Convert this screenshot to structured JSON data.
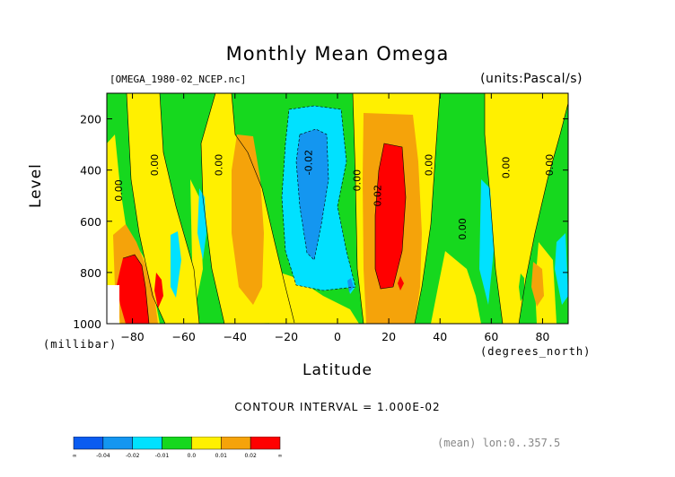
{
  "chart_data": {
    "type": "heatmap",
    "title": "Monthly Mean Omega",
    "file_label": "[OMEGA_1980-02_NCEP.nc]",
    "units_label": "(units:Pascal/s)",
    "xlabel": "Latitude",
    "xunits": "(degrees_north)",
    "ylabel": "Level",
    "yunits": "(millibar)",
    "xlim": [
      -90,
      90
    ],
    "ylim": [
      1000,
      100
    ],
    "x_ticks": [
      -80,
      -60,
      -40,
      -20,
      0,
      20,
      40,
      60,
      80
    ],
    "y_ticks": [
      200,
      400,
      600,
      800,
      1000
    ],
    "contour_interval_text": "CONTOUR INTERVAL = 1.000E-02",
    "subtitle_right": "(mean) lon:0..357.5",
    "levels": [
      "-∞",
      "-0.04",
      "-0.02",
      "-0.01",
      "0.0",
      "0.01",
      "0.02",
      "∞"
    ],
    "level_colors": [
      "#0a5cf0",
      "#1496f0",
      "#00e1ff",
      "#16d81e",
      "#fff000",
      "#f5a30a",
      "#ff0000"
    ],
    "contour_labels": [
      {
        "x": -84,
        "y": 480,
        "text": "0.00"
      },
      {
        "x": -70,
        "y": 380,
        "text": "0.00"
      },
      {
        "x": -45,
        "y": 380,
        "text": "0.00"
      },
      {
        "x": -10,
        "y": 370,
        "text": "-0.02"
      },
      {
        "x": 9,
        "y": 440,
        "text": "0.00"
      },
      {
        "x": 17,
        "y": 500,
        "text": "0.02"
      },
      {
        "x": 37,
        "y": 380,
        "text": "0.00"
      },
      {
        "x": 50,
        "y": 630,
        "text": "0.00"
      },
      {
        "x": 67,
        "y": 390,
        "text": "0.00"
      },
      {
        "x": 84,
        "y": 380,
        "text": "0.00"
      }
    ]
  }
}
